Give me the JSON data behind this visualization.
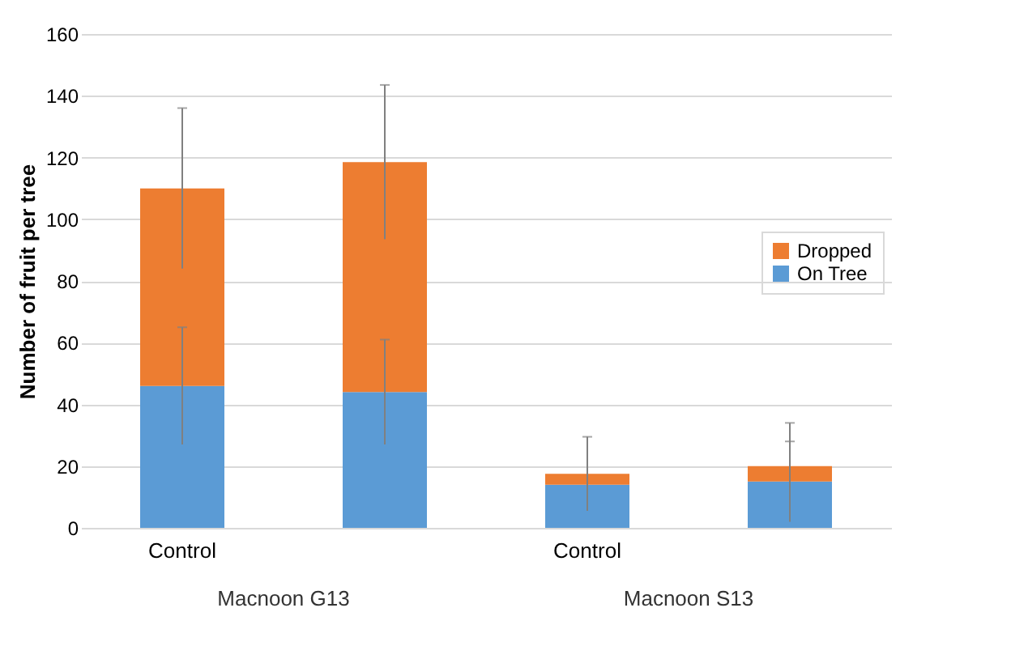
{
  "chart_data": {
    "type": "bar",
    "stacked": true,
    "ylabel": "Number of fruit per tree",
    "categories": [
      "Control",
      null,
      "Control",
      null
    ],
    "series": [
      {
        "name": "On Tree",
        "color": "#5b9bd5",
        "values": [
          46,
          44,
          14,
          15
        ],
        "errors": [
          19,
          17,
          null,
          13
        ]
      },
      {
        "name": "Dropped",
        "color": "#ed7d31",
        "values": [
          64,
          74.5,
          3.5,
          5
        ],
        "errors": [
          26,
          25,
          12,
          14
        ]
      }
    ],
    "annotations": [
      "Macnoon G13",
      "Macnoon S13"
    ],
    "ylim": [
      0,
      160
    ],
    "yticks": [
      0,
      20,
      40,
      60,
      80,
      100,
      120,
      140,
      160
    ],
    "grid": "y",
    "legend": "right"
  }
}
